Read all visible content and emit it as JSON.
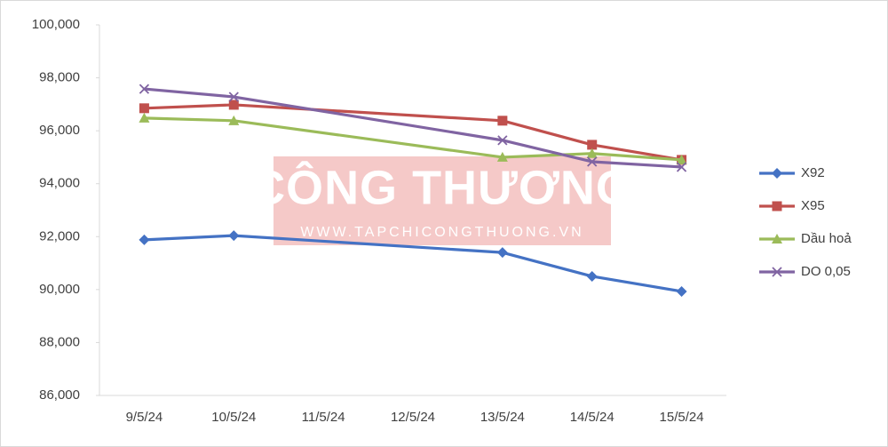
{
  "chart_data": {
    "type": "line",
    "categories": [
      "9/5/24",
      "10/5/24",
      "11/5/24",
      "12/5/24",
      "13/5/24",
      "14/5/24",
      "15/5/24"
    ],
    "series": [
      {
        "name": "X92",
        "color": "#4472c4",
        "marker": "diamond",
        "values": [
          91880,
          92040,
          null,
          null,
          91400,
          90500,
          89930
        ]
      },
      {
        "name": "X95",
        "color": "#c0504d",
        "marker": "square",
        "values": [
          96850,
          96980,
          null,
          null,
          96380,
          95470,
          94900
        ]
      },
      {
        "name": "Dầu hoả",
        "color": "#9bbb59",
        "marker": "triangle",
        "values": [
          96480,
          96380,
          null,
          null,
          95000,
          95140,
          94900
        ]
      },
      {
        "name": "DO 0,05",
        "color": "#8064a2",
        "marker": "x",
        "values": [
          97580,
          97280,
          null,
          null,
          95640,
          94830,
          94630
        ]
      }
    ],
    "ylim": [
      86000,
      100000
    ],
    "yticks": [
      {
        "value": 86000,
        "label": "86,000"
      },
      {
        "value": 88000,
        "label": "88,000"
      },
      {
        "value": 90000,
        "label": "90,000"
      },
      {
        "value": 92000,
        "label": "92,000"
      },
      {
        "value": 94000,
        "label": "94,000"
      },
      {
        "value": 96000,
        "label": "96,000"
      },
      {
        "value": 98000,
        "label": "98,000"
      },
      {
        "value": 100000,
        "label": "100,000"
      }
    ],
    "grid": false,
    "legend": "right",
    "watermark": {
      "title": "CÔNG THƯƠNG",
      "url": "WWW.TAPCHICONGTHUONG.VN"
    }
  }
}
